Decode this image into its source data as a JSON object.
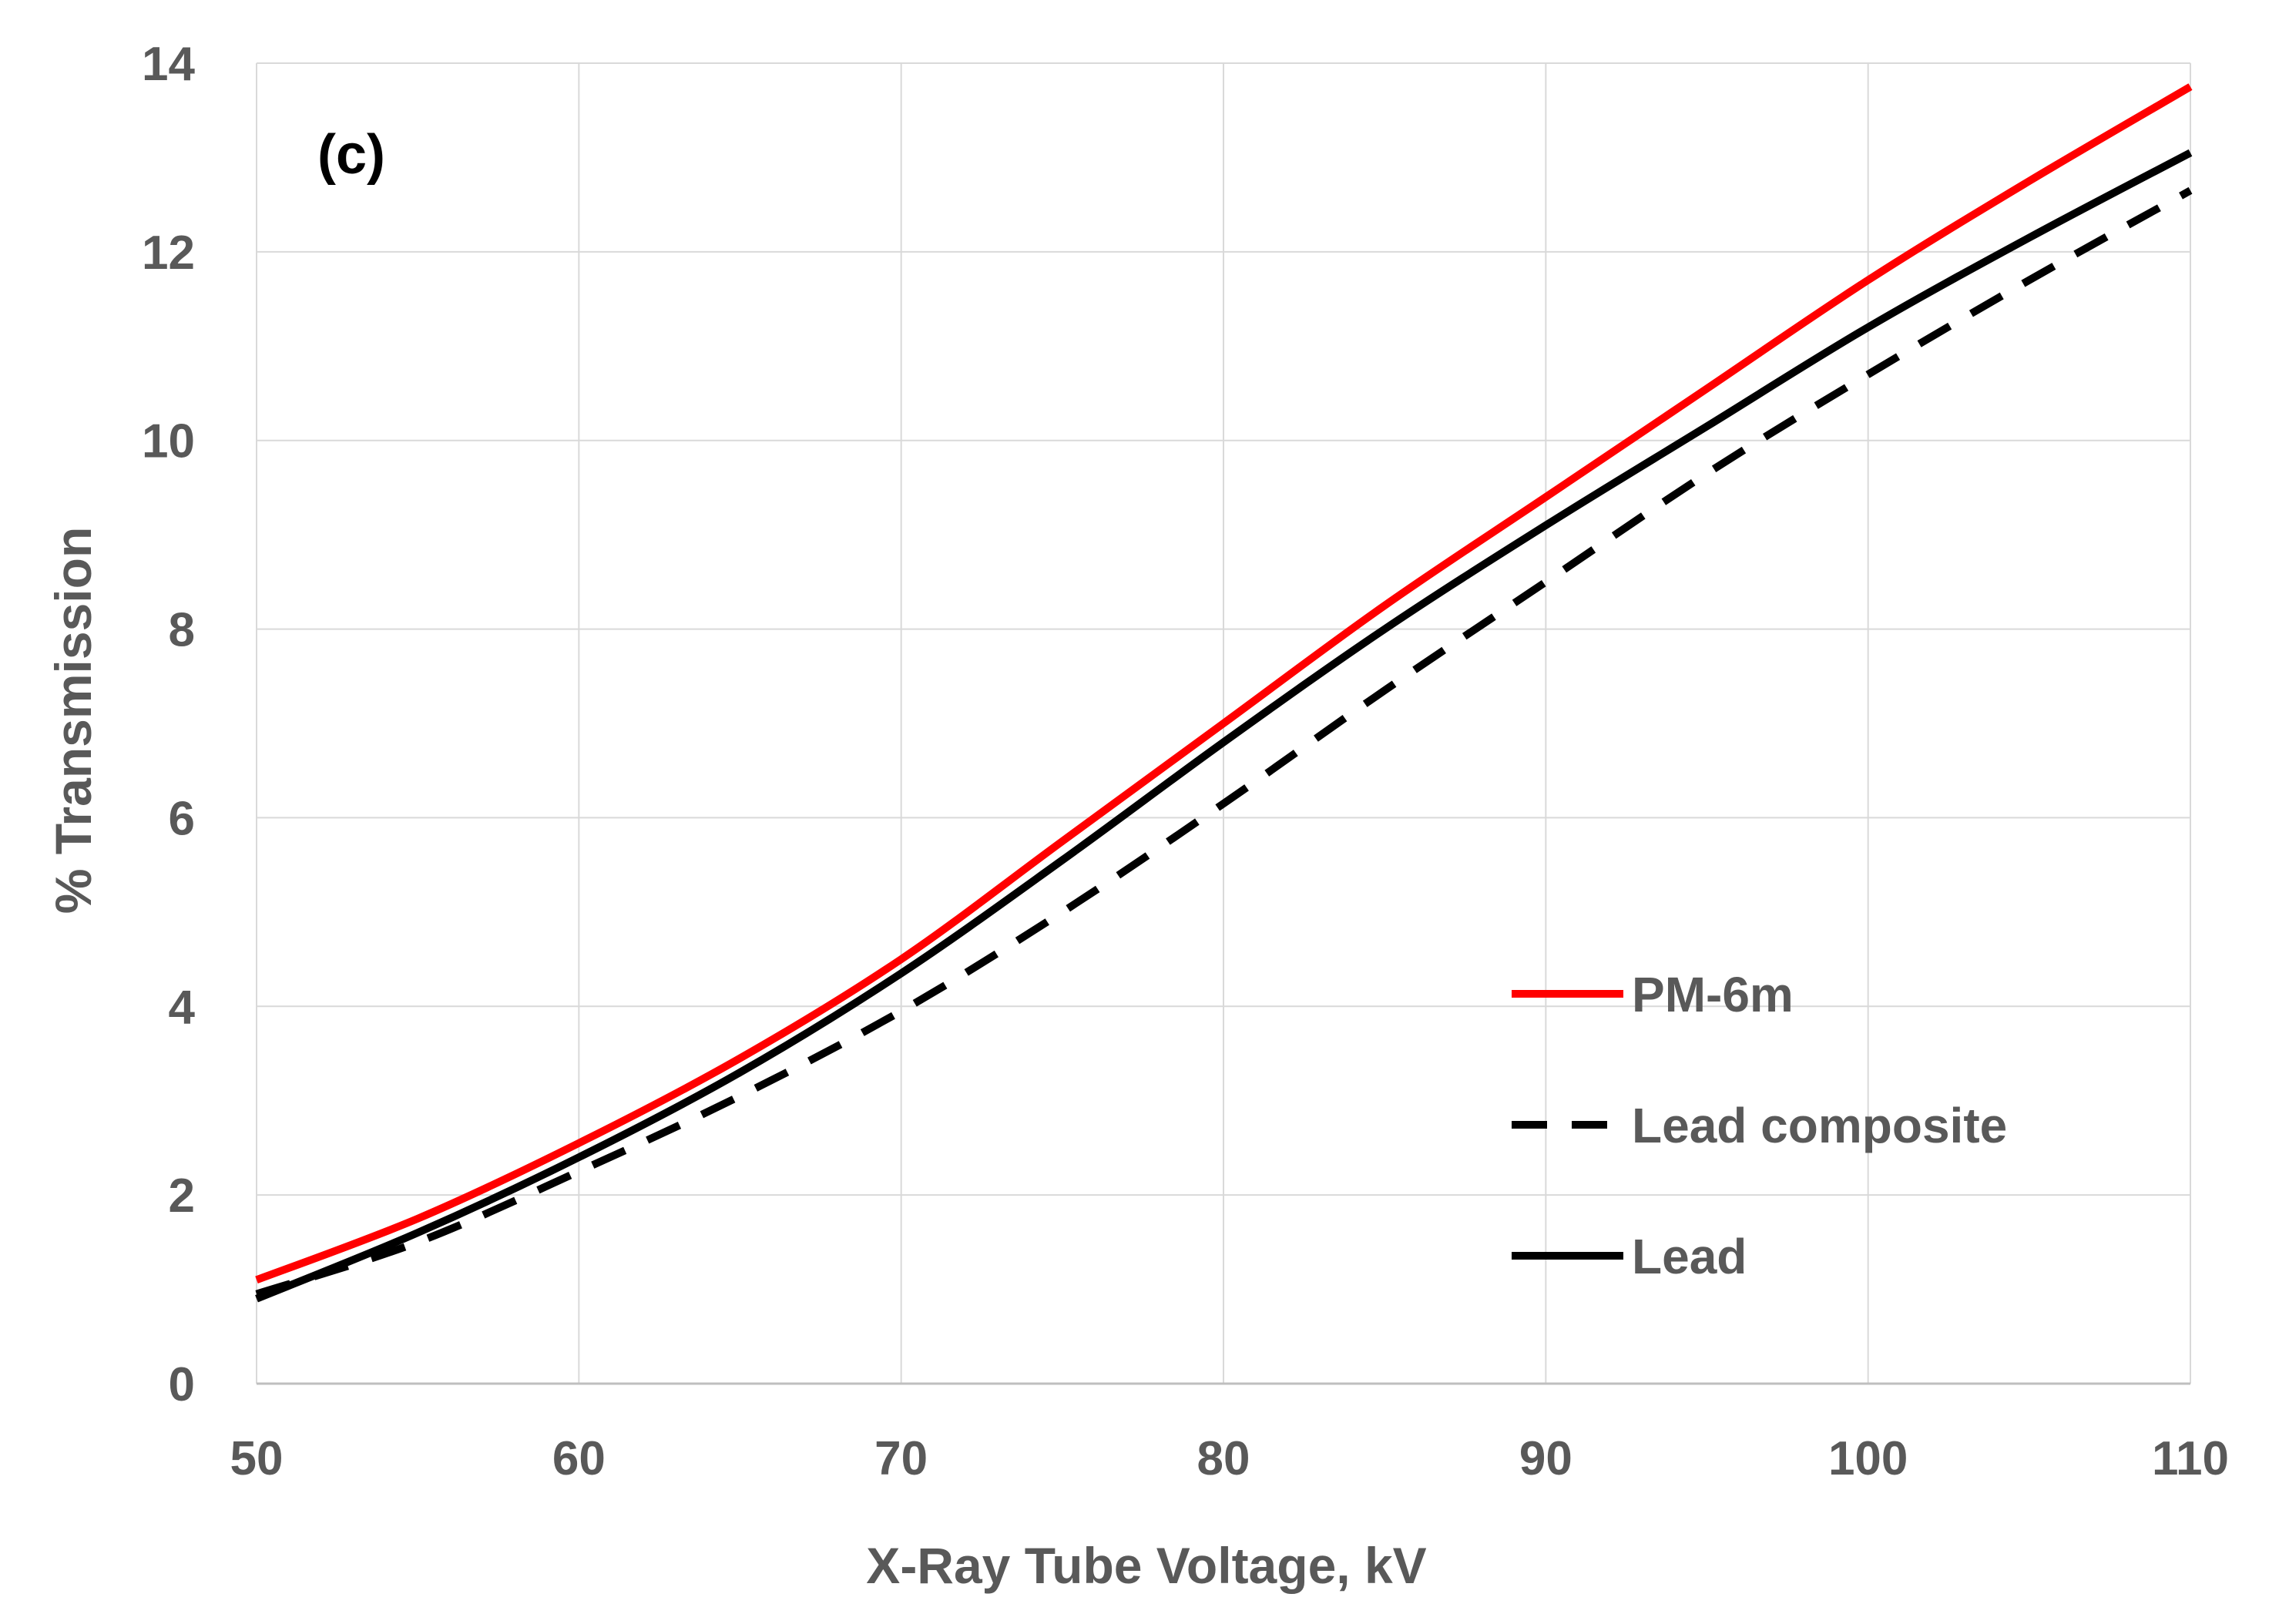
{
  "chart_data": {
    "type": "line",
    "panel_label": "(c)",
    "xlabel": "X-Ray Tube Voltage, kV",
    "ylabel": "% Transmission",
    "xlim": [
      50,
      110
    ],
    "ylim": [
      0,
      14
    ],
    "xticks": [
      "50",
      "60",
      "70",
      "80",
      "90",
      "100",
      "110"
    ],
    "yticks": [
      "0",
      "2",
      "4",
      "6",
      "8",
      "10",
      "12",
      "14"
    ],
    "grid": true,
    "legend_position": "bottom-right",
    "x": [
      50,
      55,
      60,
      65,
      70,
      75,
      80,
      85,
      90,
      95,
      100,
      105,
      110
    ],
    "series": [
      {
        "name": "PM-6m",
        "color": "#ff0000",
        "style": "solid",
        "values": [
          1.1,
          1.75,
          2.55,
          3.45,
          4.5,
          5.75,
          7.0,
          8.25,
          9.4,
          10.55,
          11.7,
          12.75,
          13.75
        ]
      },
      {
        "name": "Lead composite",
        "color": "#000000",
        "style": "dashed",
        "values": [
          0.95,
          1.5,
          2.25,
          3.05,
          3.95,
          5.0,
          6.15,
          7.35,
          8.5,
          9.65,
          10.7,
          11.7,
          12.65
        ]
      },
      {
        "name": "Lead",
        "color": "#000000",
        "style": "solid",
        "values": [
          0.9,
          1.6,
          2.4,
          3.3,
          4.35,
          5.55,
          6.8,
          8.0,
          9.1,
          10.15,
          11.2,
          12.15,
          13.05
        ]
      }
    ]
  }
}
